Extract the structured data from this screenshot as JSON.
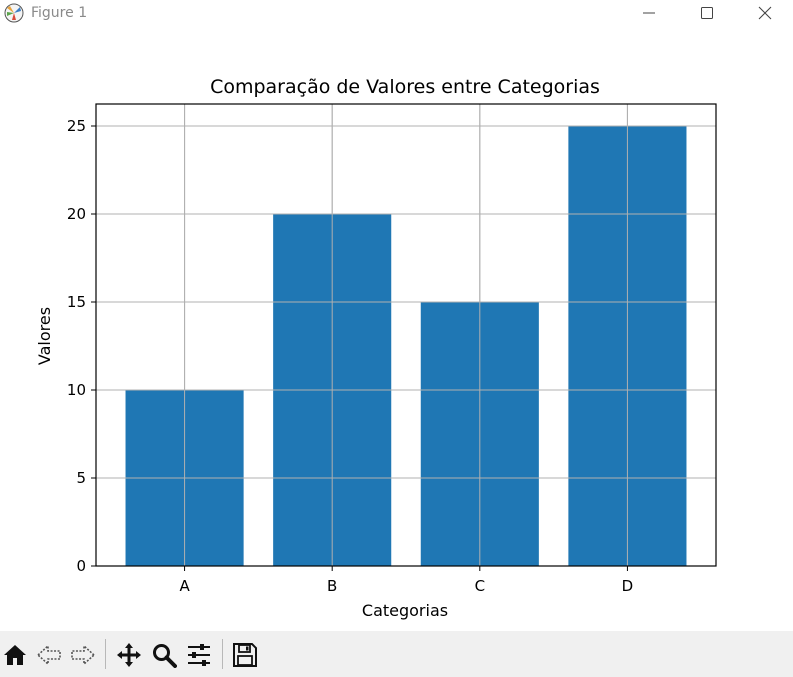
{
  "window": {
    "title": "Figure 1"
  },
  "toolbar": {
    "buttons": [
      "home-icon",
      "back-icon",
      "forward-icon",
      "pan-icon",
      "zoom-icon",
      "configure-subplots-icon",
      "save-icon"
    ]
  },
  "colors": {
    "bar": "#1f77b4",
    "grid": "#b0b0b0"
  },
  "chart_data": {
    "type": "bar",
    "title": "Comparação de Valores entre Categorias",
    "xlabel": "Categorias",
    "ylabel": "Valores",
    "categories": [
      "A",
      "B",
      "C",
      "D"
    ],
    "values": [
      10,
      20,
      15,
      25
    ],
    "ylim": [
      0,
      26.25
    ],
    "yticks": [
      0,
      5,
      10,
      15,
      20,
      25
    ],
    "grid": true
  }
}
